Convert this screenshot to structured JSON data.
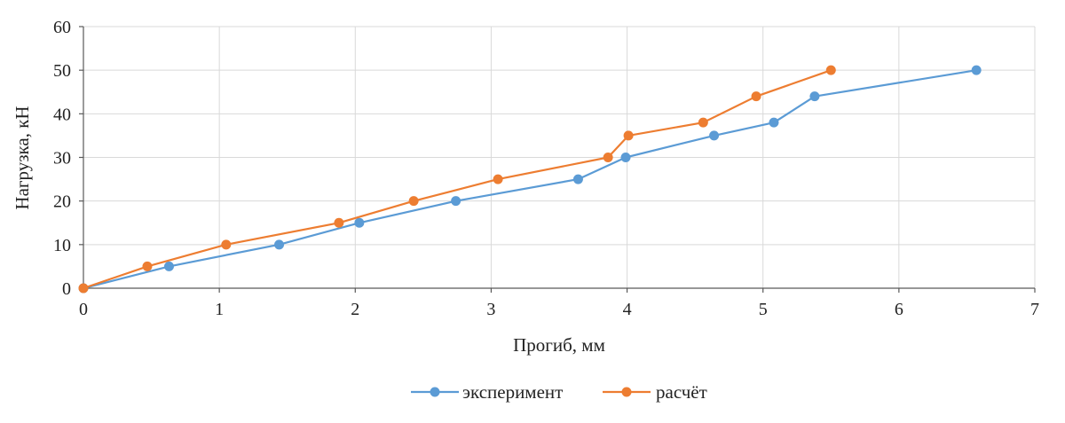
{
  "chart_data": {
    "type": "line",
    "xlabel": "Прогиб, мм",
    "ylabel": "Нагрузка, кН",
    "xlim": [
      0,
      7
    ],
    "ylim": [
      0,
      60
    ],
    "xticks": [
      0,
      1,
      2,
      3,
      4,
      5,
      6,
      7
    ],
    "yticks": [
      0,
      10,
      20,
      30,
      40,
      50,
      60
    ],
    "grid": true,
    "legend_position": "bottom",
    "series": [
      {
        "name": "эксперимент",
        "color": "#5B9BD5",
        "x": [
          0,
          0.63,
          1.44,
          2.03,
          2.74,
          3.64,
          3.99,
          4.64,
          5.08,
          5.38,
          6.57
        ],
        "y": [
          0,
          5,
          10,
          15,
          20,
          25,
          30,
          35,
          38,
          44,
          50
        ]
      },
      {
        "name": "расчёт",
        "color": "#ED7D31",
        "x": [
          0,
          0.47,
          1.05,
          1.88,
          2.43,
          3.05,
          3.86,
          4.01,
          4.56,
          4.95,
          5.5
        ],
        "y": [
          0,
          5,
          10,
          15,
          20,
          25,
          30,
          35,
          38,
          44,
          50
        ]
      }
    ]
  }
}
